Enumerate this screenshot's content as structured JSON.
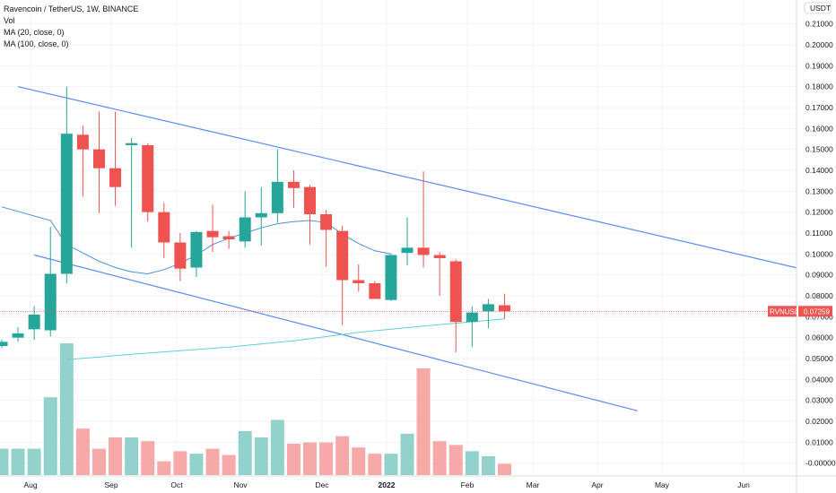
{
  "header": {
    "title": "Ravencoin / TetherUS, 1W, BINANCE",
    "indicators": [
      "Vol",
      "MA (20, close, 0)",
      "MA (100, close, 0)"
    ]
  },
  "colors": {
    "up": "#26a69a",
    "down": "#ef5350",
    "vol_up": "#93d2cc",
    "vol_down": "#f7a9a7",
    "trendline": "#5b8def",
    "ma20": "#4a90d9",
    "ma100": "#5fd0d8",
    "price_line": "#ef5350",
    "grid": "#f0f3fa",
    "axis_border": "#d6dcde"
  },
  "price_axis": {
    "unit": "USDT",
    "ticks": [
      "0.21000",
      "0.20000",
      "0.19000",
      "0.18000",
      "0.17000",
      "0.16000",
      "0.15000",
      "0.14000",
      "0.13000",
      "0.12000",
      "0.11000",
      "0.10000",
      "0.09000",
      "0.08000",
      "0.07000",
      "0.06000",
      "0.05000",
      "0.04000",
      "0.03000",
      "0.02000",
      "0.01000",
      "-0.00000"
    ],
    "last_label": "RVNUSDT",
    "last_value": "0.07259"
  },
  "time_axis": {
    "labels": [
      "Aug",
      "Sep",
      "Oct",
      "Nov",
      "Dec",
      "2022",
      "Feb",
      "Mar",
      "Apr",
      "May",
      "Jun"
    ]
  },
  "chart_data": {
    "type": "candlestick",
    "title": "Ravencoin / TetherUS, 1W, BINANCE",
    "symbol": "RVNUSDT",
    "interval": "1W",
    "exchange": "BINANCE",
    "ylim": [
      -0.001,
      0.215
    ],
    "last_price": 0.07259,
    "candles": [
      {
        "o": 0.056,
        "h": 0.059,
        "l": 0.055,
        "c": 0.058,
        "v": 0.0105
      },
      {
        "o": 0.06,
        "h": 0.065,
        "l": 0.058,
        "c": 0.062,
        "v": 0.0105
      },
      {
        "o": 0.064,
        "h": 0.075,
        "l": 0.059,
        "c": 0.071,
        "v": 0.0105
      },
      {
        "o": 0.0635,
        "h": 0.113,
        "l": 0.0605,
        "c": 0.0905,
        "v": 0.031
      },
      {
        "o": 0.0905,
        "h": 0.18,
        "l": 0.086,
        "c": 0.1575,
        "v": 0.0525
      },
      {
        "o": 0.157,
        "h": 0.1615,
        "l": 0.1275,
        "c": 0.15,
        "v": 0.0185
      },
      {
        "o": 0.15,
        "h": 0.168,
        "l": 0.1195,
        "c": 0.141,
        "v": 0.0105
      },
      {
        "o": 0.141,
        "h": 0.168,
        "l": 0.123,
        "c": 0.132,
        "v": 0.015
      },
      {
        "o": 0.152,
        "h": 0.1555,
        "l": 0.103,
        "c": 0.153,
        "v": 0.015
      },
      {
        "o": 0.152,
        "h": 0.153,
        "l": 0.1155,
        "c": 0.12,
        "v": 0.0135
      },
      {
        "o": 0.12,
        "h": 0.1245,
        "l": 0.098,
        "c": 0.1055,
        "v": 0.0055
      },
      {
        "o": 0.1055,
        "h": 0.11,
        "l": 0.087,
        "c": 0.093,
        "v": 0.0095
      },
      {
        "o": 0.0935,
        "h": 0.111,
        "l": 0.089,
        "c": 0.1105,
        "v": 0.0085
      },
      {
        "o": 0.111,
        "h": 0.1235,
        "l": 0.101,
        "c": 0.108,
        "v": 0.0105
      },
      {
        "o": 0.1085,
        "h": 0.111,
        "l": 0.1025,
        "c": 0.107,
        "v": 0.008
      },
      {
        "o": 0.106,
        "h": 0.13,
        "l": 0.103,
        "c": 0.1175,
        "v": 0.0175
      },
      {
        "o": 0.1175,
        "h": 0.132,
        "l": 0.104,
        "c": 0.1195,
        "v": 0.015
      },
      {
        "o": 0.1195,
        "h": 0.15,
        "l": 0.115,
        "c": 0.1345,
        "v": 0.022
      },
      {
        "o": 0.1345,
        "h": 0.14,
        "l": 0.122,
        "c": 0.1315,
        "v": 0.0125
      },
      {
        "o": 0.132,
        "h": 0.133,
        "l": 0.1045,
        "c": 0.119,
        "v": 0.013
      },
      {
        "o": 0.119,
        "h": 0.121,
        "l": 0.094,
        "c": 0.1115,
        "v": 0.013
      },
      {
        "o": 0.111,
        "h": 0.1135,
        "l": 0.066,
        "c": 0.0875,
        "v": 0.0155
      },
      {
        "o": 0.0875,
        "h": 0.095,
        "l": 0.082,
        "c": 0.086,
        "v": 0.011
      },
      {
        "o": 0.086,
        "h": 0.087,
        "l": 0.0795,
        "c": 0.0785,
        "v": 0.0085
      },
      {
        "o": 0.078,
        "h": 0.1,
        "l": 0.0775,
        "c": 0.0995,
        "v": 0.0085
      },
      {
        "o": 0.1005,
        "h": 0.1175,
        "l": 0.0945,
        "c": 0.103,
        "v": 0.0165
      },
      {
        "o": 0.103,
        "h": 0.1395,
        "l": 0.0935,
        "c": 0.0995,
        "v": 0.0425
      },
      {
        "o": 0.0995,
        "h": 0.101,
        "l": 0.08,
        "c": 0.098,
        "v": 0.0135
      },
      {
        "o": 0.0965,
        "h": 0.0975,
        "l": 0.053,
        "c": 0.0675,
        "v": 0.012
      },
      {
        "o": 0.0675,
        "h": 0.075,
        "l": 0.0555,
        "c": 0.072,
        "v": 0.0095
      },
      {
        "o": 0.0725,
        "h": 0.0785,
        "l": 0.0645,
        "c": 0.076,
        "v": 0.0075
      },
      {
        "o": 0.0755,
        "h": 0.081,
        "l": 0.069,
        "c": 0.0725,
        "v": 0.0045
      }
    ],
    "ma20": [
      [
        0.1225,
        0
      ],
      [
        0.116,
        3
      ],
      [
        0.1045,
        4
      ],
      [
        0.1005,
        5
      ],
      [
        0.0965,
        6
      ],
      [
        0.0935,
        7
      ],
      [
        0.0915,
        8
      ],
      [
        0.0905,
        9
      ],
      [
        0.0925,
        10
      ],
      [
        0.0955,
        11
      ],
      [
        0.0995,
        12
      ],
      [
        0.1045,
        13
      ],
      [
        0.1075,
        14
      ],
      [
        0.11,
        15
      ],
      [
        0.1125,
        16
      ],
      [
        0.1145,
        17
      ],
      [
        0.1155,
        18
      ],
      [
        0.116,
        19
      ],
      [
        0.115,
        20
      ],
      [
        0.1095,
        21
      ],
      [
        0.105,
        22
      ],
      [
        0.1015,
        23
      ],
      [
        0.1,
        24
      ]
    ],
    "ma100": [
      [
        0.0495,
        4
      ],
      [
        0.052,
        8
      ],
      [
        0.0555,
        14
      ],
      [
        0.0585,
        18
      ],
      [
        0.0625,
        22
      ],
      [
        0.0655,
        26
      ],
      [
        0.069,
        31
      ]
    ],
    "trendlines": [
      {
        "from": [
          1,
          0.18
        ],
        "to": [
          49.5,
          0.0925
        ]
      },
      {
        "from": [
          2,
          0.0995
        ],
        "to": [
          39.2,
          0.025
        ]
      }
    ]
  }
}
